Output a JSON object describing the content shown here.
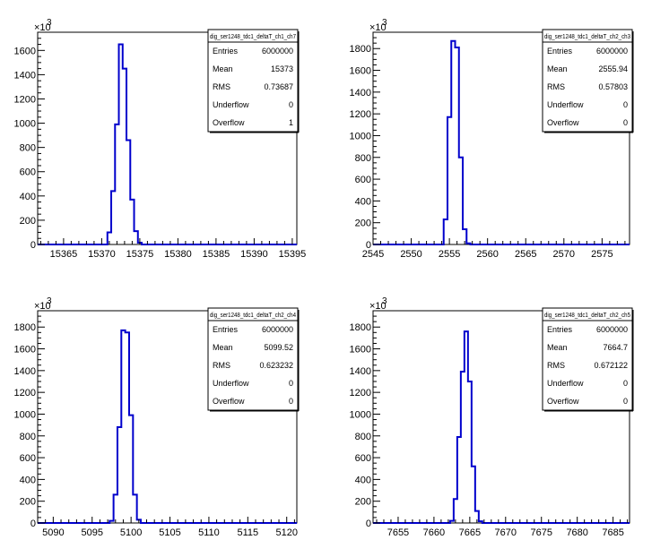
{
  "colors": {
    "histogram_line": "#0000cc",
    "axes": "#000000",
    "background": "#ffffff"
  },
  "chart_data": [
    {
      "type": "histogram",
      "stats": {
        "title": "dig_ser1248_tdc1_deltaT_ch1_ch7",
        "rows": [
          {
            "key": "Entries",
            "value": "6000000"
          },
          {
            "key": "Mean",
            "value": "15373"
          },
          {
            "key": "RMS",
            "value": "0.73687"
          },
          {
            "key": "Underflow",
            "value": "0"
          },
          {
            "key": "Overflow",
            "value": "1"
          }
        ]
      },
      "xlim": [
        15361.6,
        15395.6
      ],
      "x_ticks": [
        15365,
        15370,
        15375,
        15380,
        15385,
        15390,
        15395
      ],
      "ylim": [
        0,
        1750
      ],
      "y_ticks": [
        0,
        200,
        400,
        600,
        800,
        1000,
        1200,
        1400,
        1600
      ],
      "y_multiplier": "×10",
      "y_exponent": "3",
      "bin_width": 0.5,
      "bins": [
        {
          "x": 15371.0,
          "y": 100
        },
        {
          "x": 15371.5,
          "y": 440
        },
        {
          "x": 15372.0,
          "y": 990
        },
        {
          "x": 15372.5,
          "y": 1650
        },
        {
          "x": 15373.0,
          "y": 1450
        },
        {
          "x": 15373.5,
          "y": 860
        },
        {
          "x": 15374.0,
          "y": 370
        },
        {
          "x": 15374.5,
          "y": 110
        },
        {
          "x": 15375.0,
          "y": 15
        }
      ]
    },
    {
      "type": "histogram",
      "stats": {
        "title": "dig_ser1248_tdc1_deltaT_ch2_ch3",
        "rows": [
          {
            "key": "Entries",
            "value": "6000000"
          },
          {
            "key": "Mean",
            "value": "2555.94"
          },
          {
            "key": "RMS",
            "value": "0.57803"
          },
          {
            "key": "Underflow",
            "value": "0"
          },
          {
            "key": "Overflow",
            "value": "0"
          }
        ]
      },
      "xlim": [
        2545,
        2578.6
      ],
      "x_ticks": [
        2545,
        2550,
        2555,
        2560,
        2565,
        2570,
        2575
      ],
      "ylim": [
        0,
        1950
      ],
      "y_ticks": [
        0,
        200,
        400,
        600,
        800,
        1000,
        1200,
        1400,
        1600,
        1800
      ],
      "y_multiplier": "×10",
      "y_exponent": "3",
      "bin_width": 0.5,
      "bins": [
        {
          "x": 2554.5,
          "y": 230
        },
        {
          "x": 2555.0,
          "y": 1170
        },
        {
          "x": 2555.5,
          "y": 1870
        },
        {
          "x": 2556.0,
          "y": 1810
        },
        {
          "x": 2556.5,
          "y": 800
        },
        {
          "x": 2557.0,
          "y": 140
        },
        {
          "x": 2557.5,
          "y": 10
        }
      ]
    },
    {
      "type": "histogram",
      "stats": {
        "title": "dig_ser1248_tdc1_deltaT_ch2_ch4",
        "rows": [
          {
            "key": "Entries",
            "value": "6000000"
          },
          {
            "key": "Mean",
            "value": "5099.52"
          },
          {
            "key": "RMS",
            "value": "0.623232"
          },
          {
            "key": "Underflow",
            "value": "0"
          },
          {
            "key": "Overflow",
            "value": "0"
          }
        ]
      },
      "xlim": [
        5088,
        5121.3
      ],
      "x_ticks": [
        5090,
        5095,
        5100,
        5105,
        5110,
        5115,
        5120
      ],
      "ylim": [
        0,
        1950
      ],
      "y_ticks": [
        0,
        200,
        400,
        600,
        800,
        1000,
        1200,
        1400,
        1600,
        1800
      ],
      "y_multiplier": "×10",
      "y_exponent": "3",
      "bin_width": 0.5,
      "bins": [
        {
          "x": 5097.5,
          "y": 20
        },
        {
          "x": 5098.0,
          "y": 260
        },
        {
          "x": 5098.5,
          "y": 880
        },
        {
          "x": 5099.0,
          "y": 1770
        },
        {
          "x": 5099.5,
          "y": 1750
        },
        {
          "x": 5100.0,
          "y": 990
        },
        {
          "x": 5100.5,
          "y": 260
        },
        {
          "x": 5101.0,
          "y": 30
        }
      ]
    },
    {
      "type": "histogram",
      "stats": {
        "title": "dig_ser1248_tdc1_deltaT_ch2_ch5",
        "rows": [
          {
            "key": "Entries",
            "value": "6000000"
          },
          {
            "key": "Mean",
            "value": "7664.7"
          },
          {
            "key": "RMS",
            "value": "0.672122"
          },
          {
            "key": "Underflow",
            "value": "0"
          },
          {
            "key": "Overflow",
            "value": "0"
          }
        ]
      },
      "xlim": [
        7651.5,
        7687.3
      ],
      "x_ticks": [
        7655,
        7660,
        7665,
        7670,
        7675,
        7680,
        7685
      ],
      "ylim": [
        0,
        1950
      ],
      "y_ticks": [
        0,
        200,
        400,
        600,
        800,
        1000,
        1200,
        1400,
        1600,
        1800
      ],
      "y_multiplier": "×10",
      "y_exponent": "3",
      "bin_width": 0.5,
      "bins": [
        {
          "x": 7662.5,
          "y": 20
        },
        {
          "x": 7663.0,
          "y": 220
        },
        {
          "x": 7663.5,
          "y": 790
        },
        {
          "x": 7664.0,
          "y": 1390
        },
        {
          "x": 7664.5,
          "y": 1760
        },
        {
          "x": 7665.0,
          "y": 1300
        },
        {
          "x": 7665.5,
          "y": 520
        },
        {
          "x": 7666.0,
          "y": 110
        },
        {
          "x": 7666.5,
          "y": 15
        }
      ]
    }
  ]
}
